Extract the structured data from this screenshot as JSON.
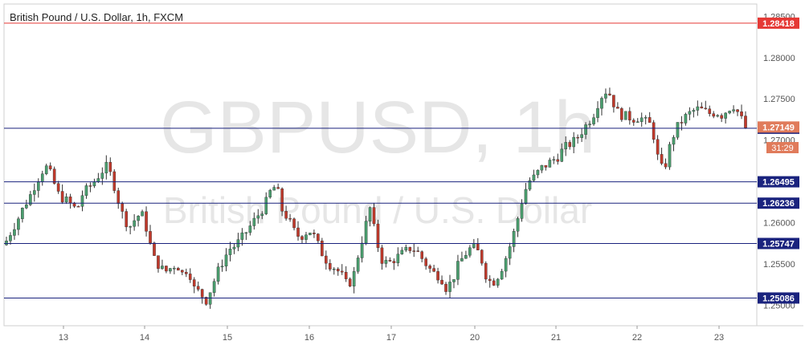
{
  "header": {
    "title": "British Pound / U.S. Dollar, 1h, FXCM"
  },
  "watermark": {
    "symbol": "GBPUSD, 1h",
    "name": "British Pound / U.S. Dollar"
  },
  "countdown": "31:29",
  "colors": {
    "up": "#4a9e6e",
    "down": "#c0392b",
    "level_line": "#1a237e",
    "resistance_line": "#e53935",
    "price_label_bg": "#1a237e",
    "resistance_label_bg": "#e53935",
    "last_price_bg": "#e07b5b",
    "watermark": "#eaeaea",
    "axis_text": "#555555"
  },
  "chart_data": {
    "type": "candlestick",
    "x_ticks": [
      "13",
      "14",
      "15",
      "16",
      "17",
      "20",
      "21",
      "22",
      "23"
    ],
    "y_ticks": [
      1.285,
      1.28,
      1.275,
      1.27,
      1.265,
      1.26,
      1.255,
      1.25
    ],
    "y_tick_labels": [
      "1.28500",
      "1.28000",
      "1.27500",
      "1.27000",
      "1.26500",
      "1.26000",
      "1.25500",
      "1.25000"
    ],
    "ylim": [
      1.2475,
      1.2865
    ],
    "resistance": {
      "value": 1.28418,
      "label": "1.28418"
    },
    "levels": [
      {
        "value": 1.27144,
        "label": "1.27144"
      },
      {
        "value": 1.26495,
        "label": "1.26495"
      },
      {
        "value": 1.26236,
        "label": "1.26236"
      },
      {
        "value": 1.25747,
        "label": "1.25747"
      },
      {
        "value": 1.25086,
        "label": "1.25086"
      }
    ],
    "last_price": {
      "value": 1.27149,
      "label": "1.27149"
    },
    "close_path": [
      1.2578,
      1.2592,
      1.2605,
      1.262,
      1.2632,
      1.2648,
      1.2662,
      1.2668,
      1.265,
      1.2632,
      1.2628,
      1.2622,
      1.2615,
      1.2635,
      1.2642,
      1.265,
      1.266,
      1.2668,
      1.2655,
      1.2628,
      1.2605,
      1.2595,
      1.2605,
      1.2612,
      1.259,
      1.2558,
      1.2548,
      1.254,
      1.2545,
      1.255,
      1.2538,
      1.2545,
      1.252,
      1.2515,
      1.2505,
      1.2522,
      1.254,
      1.2555,
      1.2568,
      1.2572,
      1.258,
      1.259,
      1.26,
      1.261,
      1.262,
      1.2638,
      1.2645,
      1.2615,
      1.2605,
      1.259,
      1.2582,
      1.2588,
      1.259,
      1.2575,
      1.256,
      1.255,
      1.2545,
      1.2538,
      1.2525,
      1.253,
      1.2562,
      1.259,
      1.2618,
      1.258,
      1.2555,
      1.255,
      1.2555,
      1.256,
      1.2565,
      1.257,
      1.2565,
      1.2555,
      1.2545,
      1.2538,
      1.2535,
      1.252,
      1.253,
      1.2548,
      1.256,
      1.2568,
      1.257,
      1.2555,
      1.253,
      1.2528,
      1.2538,
      1.2555,
      1.2575,
      1.26,
      1.263,
      1.265,
      1.2655,
      1.2665,
      1.267,
      1.2675,
      1.268,
      1.269,
      1.2695,
      1.27,
      1.271,
      1.272,
      1.273,
      1.2748,
      1.276,
      1.2755,
      1.2735,
      1.273,
      1.2728,
      1.2726,
      1.2728,
      1.2722,
      1.2718,
      1.268,
      1.266,
      1.269,
      1.2712,
      1.2722,
      1.273,
      1.2735,
      1.2738,
      1.2735,
      1.2732,
      1.2734,
      1.273,
      1.2738,
      1.2742,
      1.273,
      1.27149
    ]
  }
}
